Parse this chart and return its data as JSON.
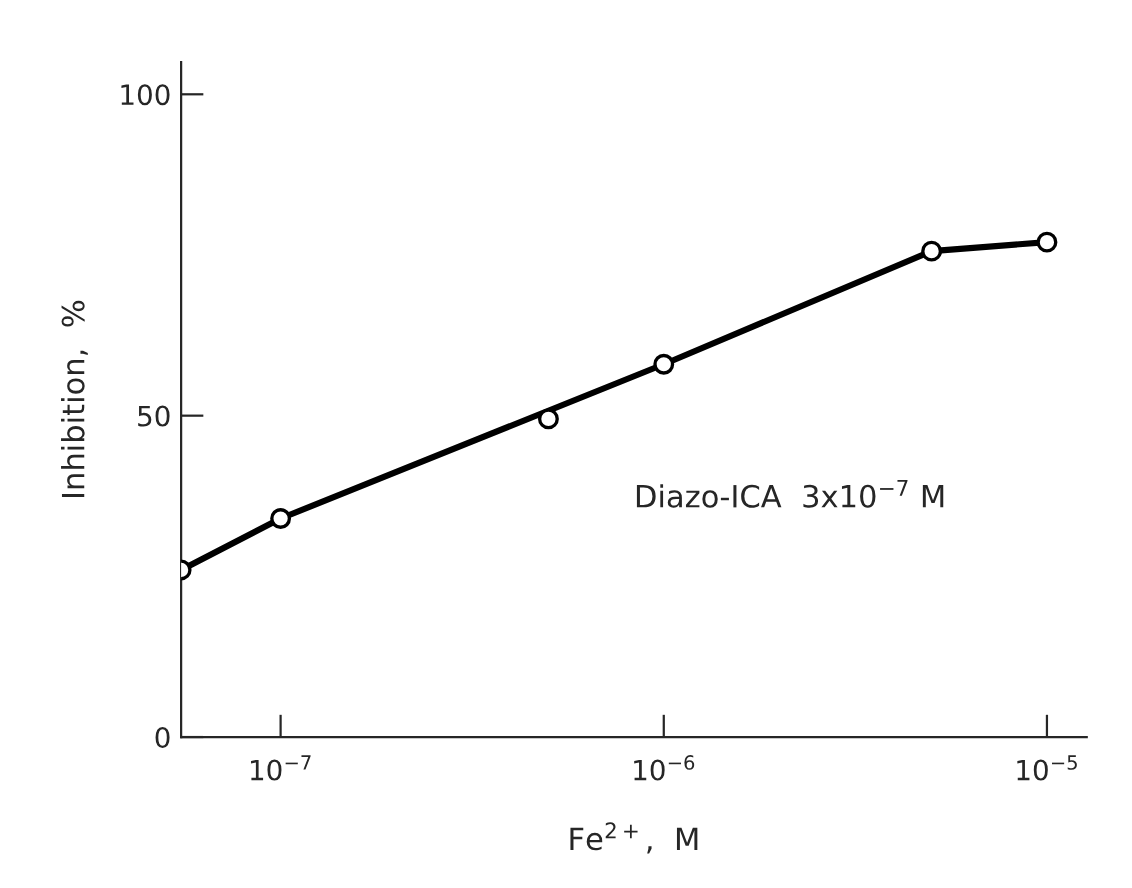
{
  "chart_data": {
    "type": "line",
    "xlabel": "Fe$^{2+}$,  M",
    "ylabel": "Inhibition,  %",
    "annotations": [
      "Diazo-ICA  3x10$^{−7}$ M"
    ],
    "series": [
      {
        "color": "#000000",
        "marker": "none",
        "x": [
          5.5e-08,
          1e-07,
          1e-06,
          5e-06,
          1e-05
        ],
        "values": [
          26,
          34,
          58,
          75.6,
          77
        ]
      },
      {
        "type": "scatter",
        "color": "#000000",
        "marker": "circle",
        "x": [
          5.5e-08,
          1e-07,
          5e-07,
          1e-06,
          5e-06,
          1e-05
        ],
        "values": [
          26,
          34,
          49.5,
          58,
          75.6,
          77
        ]
      }
    ],
    "log": "x",
    "xlim": [
      5.5e-08,
      1.27e-05
    ],
    "xticks": [
      {
        "value": 1e-07,
        "label": "10$^{−7}$"
      },
      {
        "value": 1e-06,
        "label": "10$^{−6}$"
      },
      {
        "value": 1e-05,
        "label": "10$^{−5}$"
      }
    ],
    "ylim": [
      0,
      105
    ],
    "yticks": [
      0,
      50,
      100
    ],
    "grid": false,
    "legend": false
  }
}
